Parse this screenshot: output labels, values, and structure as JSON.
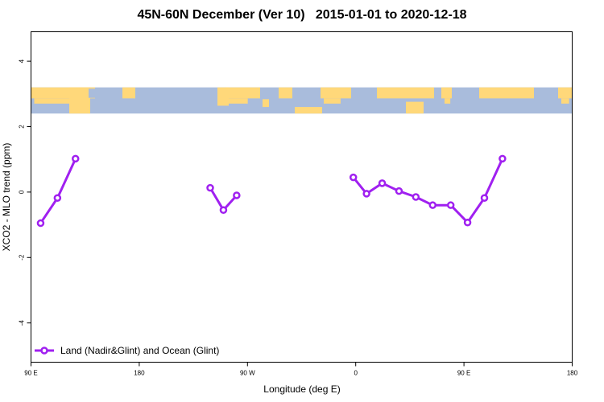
{
  "title": "45N-60N December (Ver 10)   2015-01-01 to 2020-12-18",
  "colors": {
    "series": "#a020f0",
    "map_ocean": "#a9bcdc",
    "map_land": "#ffd87a",
    "axis": "#000000"
  },
  "chart_data": {
    "type": "line",
    "title": "45N-60N December (Ver 10)   2015-01-01 to 2020-12-18",
    "xlabel": "Longitude (deg E)",
    "ylabel": "XCO2 - MLO trend (ppm)",
    "xlim": [
      90,
      540
    ],
    "ylim": [
      -5.2,
      4.9
    ],
    "x_ticks": [
      {
        "value": 90,
        "label": "90 E"
      },
      {
        "value": 180,
        "label": "180"
      },
      {
        "value": 270,
        "label": "90 W"
      },
      {
        "value": 360,
        "label": "0"
      },
      {
        "value": 450,
        "label": "90 E"
      },
      {
        "value": 540,
        "label": "180"
      }
    ],
    "y_ticks": [
      {
        "value": -4,
        "label": "-4"
      },
      {
        "value": -2,
        "label": "-2"
      },
      {
        "value": 0,
        "label": "0"
      },
      {
        "value": 2,
        "label": "2"
      },
      {
        "value": 4,
        "label": "4"
      }
    ],
    "map_band": {
      "y_top": 3.2,
      "y_bottom": 2.4
    },
    "legend": {
      "position": "bottom-left"
    },
    "grid": false,
    "series": [
      {
        "name": "Land (Nadir&Glint) and Ocean (Glint)",
        "segments": [
          [
            [
              98,
              -0.95
            ],
            [
              112,
              -0.18
            ],
            [
              127,
              1.02
            ]
          ],
          [
            [
              239,
              0.13
            ],
            [
              250,
              -0.55
            ],
            [
              261,
              -0.1
            ]
          ],
          [
            [
              358,
              0.45
            ],
            [
              369,
              -0.05
            ],
            [
              382,
              0.27
            ],
            [
              396,
              0.03
            ],
            [
              410,
              -0.15
            ],
            [
              424,
              -0.4
            ],
            [
              439,
              -0.4
            ],
            [
              453,
              -0.93
            ],
            [
              467,
              -0.18
            ],
            [
              482,
              1.02
            ]
          ]
        ]
      }
    ]
  }
}
